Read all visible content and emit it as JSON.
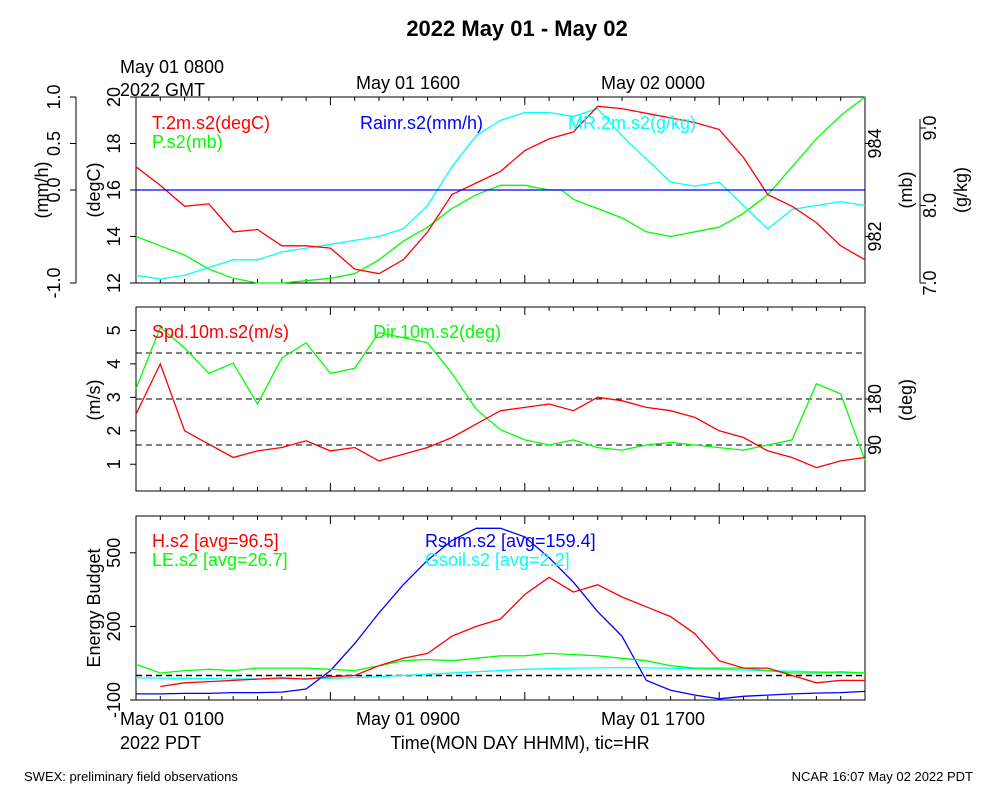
{
  "title": "2022 May 01 - May 02",
  "footer": {
    "left": "SWEX: preliminary field observations",
    "right": "NCAR 16:07 May 02 2022 PDT"
  },
  "top_time": {
    "first_line1": "May 01 0800",
    "first_line2": "2022 GMT",
    "mid": "May 01 1600",
    "right": "May 02 0000"
  },
  "bottom_time": {
    "first_line1": "May 01 0100",
    "first_line2": "2022 PDT",
    "mid": "May 01 0900",
    "right": "May 01 1700",
    "xlabel": "Time(MON DAY HHMM), tic=HR"
  },
  "colors": {
    "red": "#ff0000",
    "green": "#00ff00",
    "blue": "#0000ff",
    "cyan": "#00ffff",
    "black": "#000000"
  },
  "chart_data": [
    {
      "type": "line",
      "x_range_hours": [
        0,
        30
      ],
      "axes": {
        "rain": {
          "label": "(mm/h)",
          "ylim": [
            -1.0,
            1.0
          ],
          "ticks": [
            "-1.0",
            "0.0",
            "0.5",
            "1.0"
          ]
        },
        "temp": {
          "label": "(degC)",
          "ylim": [
            12,
            20
          ],
          "ticks": [
            "12",
            "14",
            "16",
            "18",
            "20"
          ]
        },
        "pres": {
          "label": "(mb)",
          "ylim": [
            981,
            985
          ],
          "ticks": [
            "982",
            "984"
          ]
        },
        "mr": {
          "label": "(g/kg)",
          "ylim": [
            7.0,
            9.4
          ],
          "ticks": [
            "7.0",
            "8.0",
            "9.0"
          ]
        }
      },
      "series": [
        {
          "name": "T.2m.s2(degC)",
          "color": "#ff0000",
          "axis": "temp",
          "x": [
            0,
            1,
            2,
            3,
            4,
            5,
            6,
            7,
            8,
            9,
            10,
            11,
            12,
            13,
            14,
            15,
            16,
            17,
            18,
            19,
            20,
            21,
            22,
            23,
            24,
            25,
            26,
            27,
            28,
            29,
            30
          ],
          "y": [
            17.0,
            16.2,
            15.3,
            15.4,
            14.2,
            14.3,
            13.6,
            13.6,
            13.5,
            12.6,
            12.4,
            13.0,
            14.2,
            15.8,
            16.3,
            16.8,
            17.7,
            18.2,
            18.5,
            19.6,
            19.5,
            19.3,
            19.1,
            18.9,
            18.6,
            17.4,
            15.8,
            15.3,
            14.6,
            13.6,
            13.0
          ]
        },
        {
          "name": "Rainr.s2(mm/h)",
          "color": "#0000ff",
          "axis": "rain",
          "x": [
            0,
            30
          ],
          "y": [
            0.0,
            0.0
          ]
        },
        {
          "name": "MR.2m.s2(g/kg)",
          "color": "#00ffff",
          "axis": "mr",
          "x": [
            0,
            1,
            2,
            3,
            4,
            5,
            6,
            7,
            8,
            9,
            10,
            11,
            12,
            13,
            14,
            15,
            16,
            17,
            18,
            19,
            20,
            21,
            22,
            23,
            24,
            25,
            26,
            27,
            28,
            29,
            30
          ],
          "y": [
            7.1,
            7.05,
            7.1,
            7.2,
            7.3,
            7.3,
            7.4,
            7.45,
            7.5,
            7.55,
            7.6,
            7.7,
            8.0,
            8.5,
            8.9,
            9.1,
            9.2,
            9.2,
            9.15,
            9.25,
            8.9,
            8.6,
            8.3,
            8.25,
            8.3,
            8.0,
            7.7,
            7.95,
            8.0,
            8.05,
            8.0
          ]
        },
        {
          "name": "P.s2(mb)",
          "color": "#00ff00",
          "axis": "pres",
          "x": [
            0,
            1,
            2,
            3,
            4,
            5,
            6,
            7,
            8,
            9,
            10,
            11,
            12,
            13,
            14,
            15,
            16,
            17,
            17.5,
            18,
            19,
            20,
            21,
            22,
            23,
            24,
            25,
            26,
            27,
            28,
            29,
            30
          ],
          "y": [
            982.0,
            981.8,
            981.6,
            981.3,
            981.1,
            981.0,
            981.0,
            981.05,
            981.1,
            981.2,
            981.5,
            981.9,
            982.2,
            982.6,
            982.9,
            983.1,
            983.1,
            983.0,
            983.0,
            982.8,
            982.6,
            982.4,
            982.1,
            982.0,
            982.1,
            982.2,
            982.5,
            982.9,
            983.5,
            984.1,
            984.6,
            985.0
          ]
        }
      ]
    },
    {
      "type": "line",
      "x_range_hours": [
        0,
        30
      ],
      "axes": {
        "spd": {
          "label": "(m/s)",
          "ylim": [
            0.2,
            5.7
          ],
          "ticks": [
            "1",
            "2",
            "3",
            "4",
            "5"
          ]
        },
        "dir": {
          "label": "(deg)",
          "ylim": [
            0,
            360
          ],
          "ticks": [
            "90",
            "180"
          ]
        }
      },
      "reference_lines_deg": [
        90,
        180,
        270
      ],
      "series": [
        {
          "name": "Spd.10m.s2(m/s)",
          "color": "#ff0000",
          "axis": "spd",
          "x": [
            0,
            1,
            2,
            3,
            4,
            5,
            6,
            7,
            8,
            9,
            10,
            11,
            12,
            13,
            14,
            15,
            16,
            17,
            18,
            19,
            20,
            21,
            22,
            23,
            24,
            25,
            26,
            27,
            28,
            29,
            30
          ],
          "y": [
            2.5,
            4.0,
            2.0,
            1.6,
            1.2,
            1.4,
            1.5,
            1.7,
            1.4,
            1.5,
            1.1,
            1.3,
            1.5,
            1.8,
            2.2,
            2.6,
            2.7,
            2.8,
            2.6,
            3.0,
            2.9,
            2.7,
            2.6,
            2.4,
            2.0,
            1.8,
            1.4,
            1.2,
            0.9,
            1.1,
            1.2
          ]
        },
        {
          "name": "Dir.10m.s2(deg)",
          "color": "#00ff00",
          "axis": "dir",
          "x": [
            0,
            1,
            2,
            3,
            4,
            5,
            6,
            7,
            8,
            9,
            10,
            11,
            12,
            13,
            14,
            15,
            16,
            17,
            18,
            19,
            20,
            21,
            22,
            23,
            24,
            25,
            26,
            27,
            28,
            29,
            30
          ],
          "y": [
            200,
            320,
            280,
            230,
            250,
            170,
            260,
            290,
            230,
            240,
            310,
            300,
            290,
            230,
            160,
            120,
            100,
            90,
            100,
            85,
            80,
            90,
            95,
            90,
            85,
            80,
            90,
            100,
            210,
            190,
            60
          ]
        }
      ]
    },
    {
      "type": "line",
      "x_range_hours": [
        0,
        30
      ],
      "axes": {
        "energy": {
          "label": "Energy Budget",
          "ylim": [
            -100,
            650
          ],
          "ticks": [
            "-100",
            "200",
            "500"
          ]
        }
      },
      "reference_lines_wm2": [
        0
      ],
      "series": [
        {
          "name": "H.s2 [avg=96.5]",
          "color": "#ff0000",
          "axis": "energy",
          "x": [
            1,
            2,
            3,
            4,
            5,
            6,
            7,
            8,
            9,
            10,
            11,
            12,
            13,
            14,
            15,
            16,
            17,
            18,
            19,
            20,
            21,
            22,
            23,
            24,
            25,
            26,
            27,
            28,
            29,
            30
          ],
          "y": [
            -45,
            -30,
            -25,
            -20,
            -15,
            -10,
            -15,
            -5,
            0,
            40,
            70,
            90,
            160,
            200,
            230,
            330,
            400,
            340,
            370,
            320,
            280,
            240,
            170,
            60,
            30,
            30,
            0,
            -30,
            -20,
            -20
          ]
        },
        {
          "name": "LE.s2 [avg=26.7]",
          "color": "#00ff00",
          "axis": "energy",
          "x": [
            0,
            1,
            2,
            3,
            4,
            5,
            6,
            7,
            8,
            9,
            10,
            11,
            12,
            13,
            14,
            15,
            16,
            17,
            18,
            19,
            20,
            21,
            22,
            23,
            24,
            25,
            26,
            27,
            28,
            29,
            30
          ],
          "y": [
            45,
            10,
            20,
            25,
            20,
            30,
            30,
            30,
            25,
            20,
            40,
            60,
            65,
            60,
            70,
            80,
            80,
            90,
            85,
            80,
            70,
            60,
            40,
            30,
            30,
            30,
            20,
            10,
            10,
            15,
            10
          ]
        },
        {
          "name": "Rsum.s2 [avg=159.4]",
          "color": "#0000ff",
          "axis": "energy",
          "x": [
            0,
            1,
            2,
            3,
            4,
            5,
            6,
            7,
            8,
            9,
            10,
            11,
            12,
            13,
            14,
            15,
            16,
            17,
            18,
            19,
            20,
            21,
            22,
            23,
            24,
            25,
            26,
            27,
            28,
            29,
            30
          ],
          "y": [
            -75,
            -75,
            -73,
            -73,
            -70,
            -70,
            -68,
            -55,
            20,
            130,
            255,
            370,
            470,
            550,
            600,
            600,
            565,
            480,
            380,
            260,
            160,
            -20,
            -60,
            -80,
            -95,
            -85,
            -80,
            -75,
            -72,
            -70,
            -65
          ]
        },
        {
          "name": "Gsoil.s2 [avg=2.2]",
          "color": "#00ffff",
          "axis": "energy",
          "x": [
            0,
            2,
            4,
            6,
            8,
            10,
            12,
            14,
            16,
            18,
            20,
            22,
            24,
            26,
            28,
            30
          ],
          "y": [
            -10,
            -12,
            -14,
            -14,
            -12,
            -5,
            5,
            15,
            25,
            30,
            32,
            30,
            25,
            20,
            15,
            10
          ]
        }
      ]
    }
  ]
}
